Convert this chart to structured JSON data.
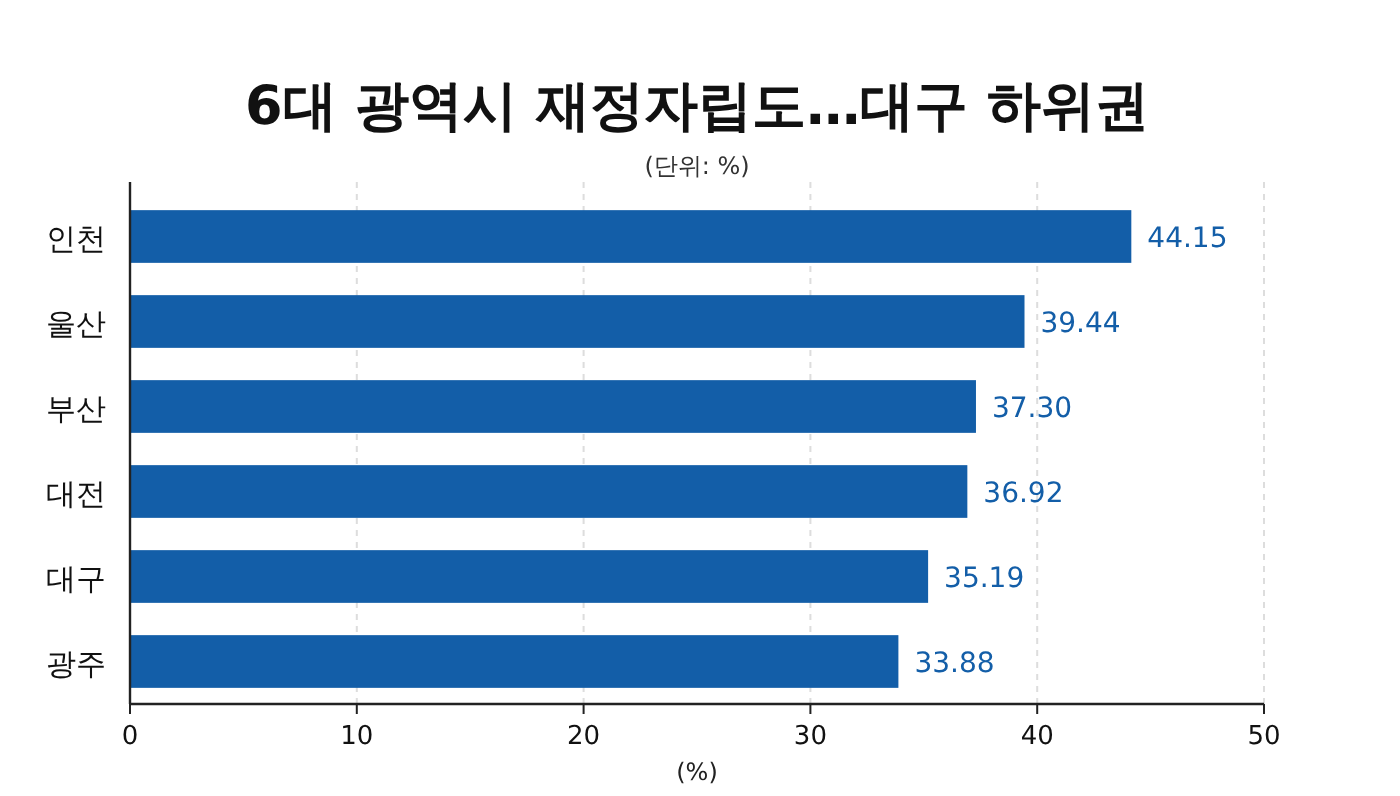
{
  "chart_data": {
    "type": "bar",
    "orientation": "horizontal",
    "title": "6대 광역시 재정자립도…대구 하위권",
    "subtitle": "(단위: %)",
    "xlabel": "(%)",
    "categories": [
      "인천",
      "울산",
      "부산",
      "대전",
      "대구",
      "광주"
    ],
    "series": [
      {
        "color": "#135ea8",
        "values": [
          44.15,
          39.44,
          37.3,
          36.92,
          35.19,
          33.88
        ]
      }
    ],
    "value_labels": [
      "44.15",
      "39.44",
      "37.30",
      "36.92",
      "35.19",
      "33.88"
    ],
    "xlim": [
      0,
      50
    ],
    "xticks": [
      0,
      10,
      20,
      30,
      40,
      50
    ],
    "grid": "x"
  }
}
